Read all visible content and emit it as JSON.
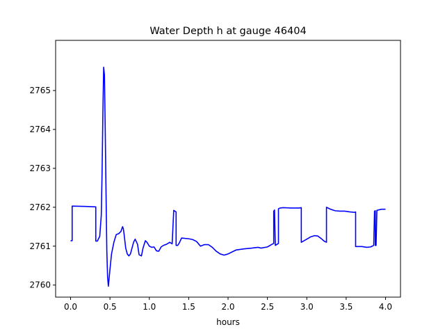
{
  "chart_data": {
    "type": "line",
    "title": "Water Depth h at gauge 46404",
    "xlabel": "hours",
    "ylabel": "",
    "xlim": [
      -0.19,
      4.19
    ],
    "ylim": [
      2759.69,
      2766.29
    ],
    "xticks": [
      0.0,
      0.5,
      1.0,
      1.5,
      2.0,
      2.5,
      3.0,
      3.5,
      4.0
    ],
    "xtick_labels": [
      "0.0",
      "0.5",
      "1.0",
      "1.5",
      "2.0",
      "2.5",
      "3.0",
      "3.5",
      "4.0"
    ],
    "yticks": [
      2760,
      2761,
      2762,
      2763,
      2764,
      2765
    ],
    "ytick_labels": [
      "2760",
      "2761",
      "2762",
      "2763",
      "2764",
      "2765"
    ],
    "grid": false,
    "line_color": "#0000ff",
    "series": [
      {
        "x": [
          0.0,
          0.02,
          0.02,
          0.2,
          0.32,
          0.32,
          0.34,
          0.37,
          0.39,
          0.4,
          0.41,
          0.42,
          0.43,
          0.44,
          0.45,
          0.46,
          0.47,
          0.48,
          0.5,
          0.52,
          0.55,
          0.58,
          0.61,
          0.64,
          0.66,
          0.67,
          0.68,
          0.7,
          0.72,
          0.74,
          0.76,
          0.78,
          0.8,
          0.82,
          0.85,
          0.87,
          0.9,
          0.92,
          0.95,
          0.97,
          1.0,
          1.03,
          1.06,
          1.09,
          1.12,
          1.15,
          1.18,
          1.22,
          1.26,
          1.29,
          1.31,
          1.31,
          1.34,
          1.34,
          1.36,
          1.38,
          1.41,
          1.45,
          1.5,
          1.55,
          1.6,
          1.65,
          1.7,
          1.75,
          1.8,
          1.85,
          1.9,
          1.95,
          2.0,
          2.05,
          2.1,
          2.2,
          2.3,
          2.38,
          2.42,
          2.5,
          2.56,
          2.58,
          2.58,
          2.59,
          2.6,
          2.6,
          2.64,
          2.64,
          2.66,
          2.7,
          2.8,
          2.9,
          2.93,
          2.93,
          3.0,
          3.05,
          3.1,
          3.14,
          3.18,
          3.22,
          3.25,
          3.25,
          3.3,
          3.36,
          3.42,
          3.48,
          3.55,
          3.61,
          3.62,
          3.62,
          3.7,
          3.76,
          3.81,
          3.85,
          3.86,
          3.87,
          3.87,
          3.88,
          3.89,
          3.89,
          3.91,
          3.93,
          3.95,
          4.0
        ],
        "y": [
          2761.14,
          2761.14,
          2762.03,
          2762.02,
          2762.01,
          2761.13,
          2761.13,
          2761.25,
          2761.8,
          2762.9,
          2764.4,
          2765.6,
          2765.4,
          2764.0,
          2762.4,
          2760.9,
          2760.2,
          2759.97,
          2760.4,
          2760.8,
          2761.1,
          2761.3,
          2761.32,
          2761.38,
          2761.5,
          2761.45,
          2761.3,
          2760.95,
          2760.8,
          2760.75,
          2760.8,
          2760.95,
          2761.1,
          2761.18,
          2761.05,
          2760.78,
          2760.75,
          2760.95,
          2761.14,
          2761.1,
          2761.0,
          2760.97,
          2760.98,
          2760.88,
          2760.87,
          2760.98,
          2761.02,
          2761.05,
          2761.1,
          2761.06,
          2761.92,
          2761.92,
          2761.88,
          2761.02,
          2761.02,
          2761.08,
          2761.21,
          2761.2,
          2761.19,
          2761.17,
          2761.12,
          2761.0,
          2761.04,
          2761.04,
          2760.97,
          2760.87,
          2760.8,
          2760.77,
          2760.8,
          2760.85,
          2760.9,
          2760.93,
          2760.95,
          2760.97,
          2760.95,
          2760.98,
          2761.05,
          2761.07,
          2761.9,
          2761.93,
          2761.02,
          2761.02,
          2761.07,
          2761.96,
          2761.98,
          2761.99,
          2761.98,
          2761.98,
          2761.99,
          2761.1,
          2761.18,
          2761.24,
          2761.27,
          2761.26,
          2761.2,
          2761.13,
          2761.1,
          2762.0,
          2761.95,
          2761.91,
          2761.9,
          2761.9,
          2761.88,
          2761.87,
          2761.88,
          2760.99,
          2760.99,
          2760.97,
          2760.98,
          2761.02,
          2761.9,
          2761.91,
          2761.02,
          2761.02,
          2761.91,
          2761.92,
          2761.93,
          2761.94,
          2761.95,
          2761.95
        ]
      }
    ]
  }
}
